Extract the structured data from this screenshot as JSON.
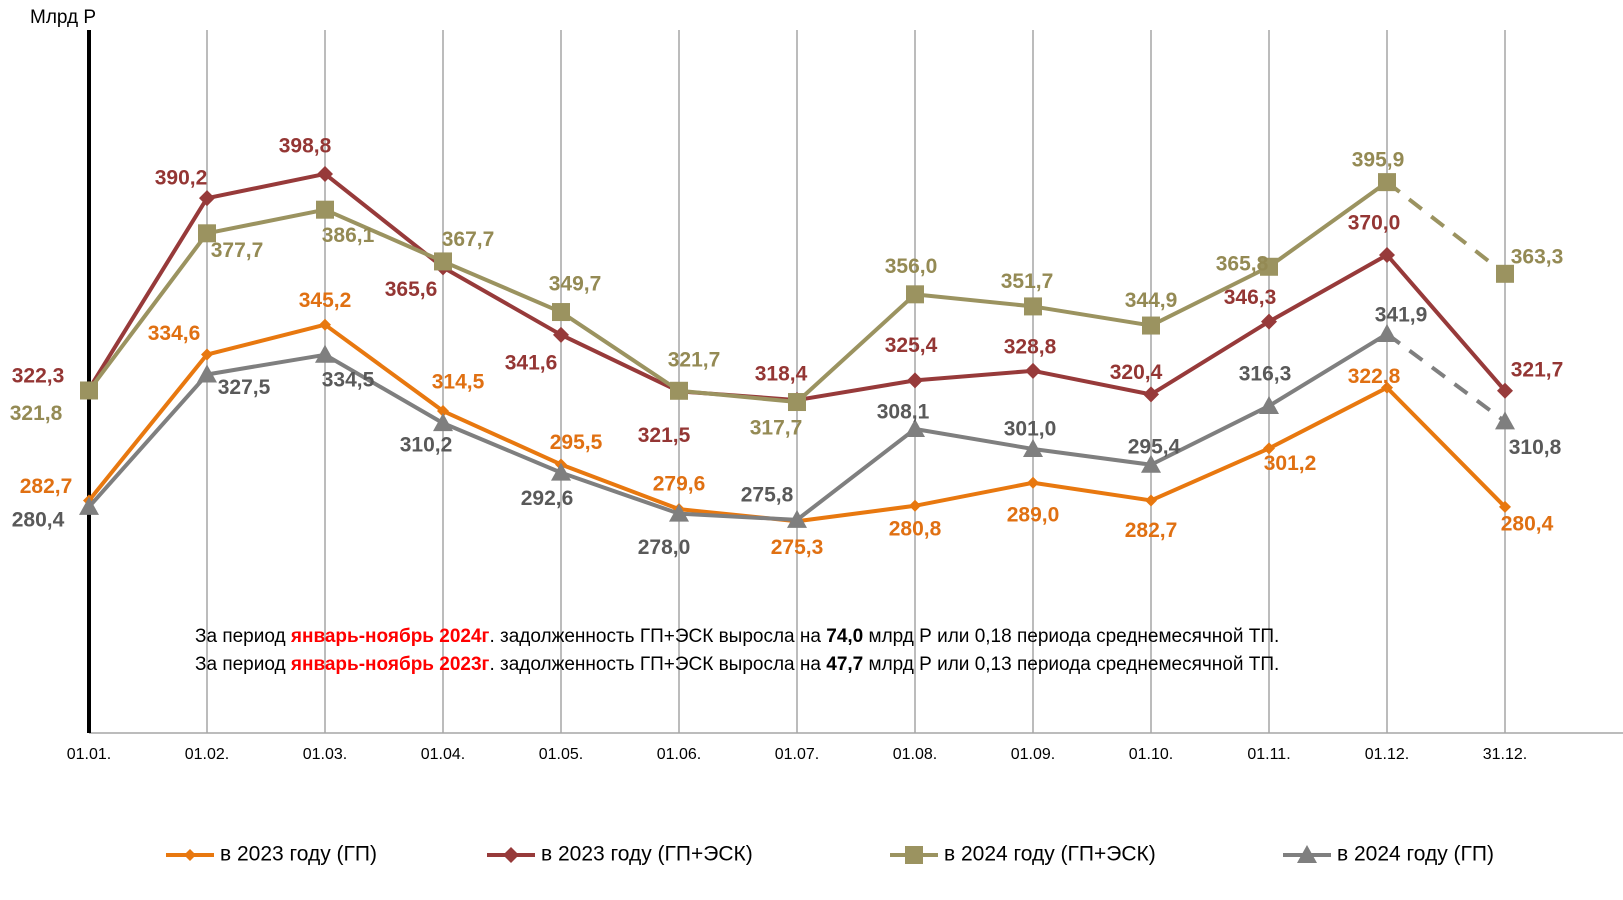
{
  "chart_data": {
    "type": "line",
    "y_label": "Млрд Р",
    "categories": [
      "01.01.",
      "01.02.",
      "01.03.",
      "01.04.",
      "01.05.",
      "01.06.",
      "01.07.",
      "01.08.",
      "01.09.",
      "01.10.",
      "01.11.",
      "01.12.",
      "31.12."
    ],
    "ylim": [
      200,
      450
    ],
    "grid": true,
    "legend": "bottom",
    "series": [
      {
        "name": "в 2023 году (ГП)",
        "color": "#e8780f",
        "label_color": "#e07012",
        "marker": "diamond-small",
        "dashed_last_segment": false,
        "values": [
          282.7,
          334.6,
          345.2,
          314.5,
          295.5,
          279.6,
          275.3,
          280.8,
          289.0,
          282.7,
          301.2,
          322.8,
          280.4
        ],
        "value_labels": [
          "282,7",
          "334,6",
          "345,2",
          "314,5",
          "295,5",
          "279,6",
          "275,3",
          "280,8",
          "289,0",
          "282,7",
          "301,2",
          "322,8",
          "280,4"
        ]
      },
      {
        "name": "в 2023 году (ГП+ЭСК)",
        "color": "#973a3a",
        "label_color": "#943634",
        "marker": "diamond",
        "dashed_last_segment": false,
        "values": [
          322.3,
          390.2,
          398.8,
          365.6,
          341.6,
          321.5,
          318.4,
          325.4,
          328.8,
          320.4,
          346.3,
          370.0,
          321.7
        ],
        "value_labels": [
          "322,3",
          "390,2",
          "398,8",
          "365,6",
          "341,6",
          "321,5",
          "318,4",
          "325,4",
          "328,8",
          "320,4",
          "346,3",
          "370,0",
          "321,7"
        ]
      },
      {
        "name": "в 2024 году (ГП+ЭСК)",
        "color": "#9b9360",
        "label_color": "#948a54",
        "marker": "square",
        "dashed_last_segment": true,
        "values": [
          321.8,
          377.7,
          386.1,
          367.7,
          349.7,
          321.7,
          317.7,
          356.0,
          351.7,
          344.9,
          365.8,
          395.9,
          363.3
        ],
        "value_labels": [
          "321,8",
          "377,7",
          "386,1",
          "367,7",
          "349,7",
          "321,7",
          "317,7",
          "356,0",
          "351,7",
          "344,9",
          "365,8",
          "395,9",
          "363,3"
        ]
      },
      {
        "name": "в 2024 году (ГП)",
        "color": "#7f7f7f",
        "label_color": "#595959",
        "marker": "triangle",
        "dashed_last_segment": true,
        "values": [
          280.4,
          327.5,
          334.5,
          310.2,
          292.6,
          278.0,
          275.8,
          308.1,
          301.0,
          295.4,
          316.3,
          341.9,
          310.8
        ],
        "value_labels": [
          "280,4",
          "327,5",
          "334,5",
          "310,2",
          "292,6",
          "278,0",
          "275,8",
          "308,1",
          "301,0",
          "295,4",
          "316,3",
          "341,9",
          "310,8"
        ]
      }
    ],
    "annotations": [
      [
        {
          "text": "За период ",
          "style": "normal"
        },
        {
          "text": "январь-ноябрь 2024г",
          "style": "red-bold"
        },
        {
          "text": ". задолженность ГП+ЭСК выросла на ",
          "style": "normal"
        },
        {
          "text": "74,0",
          "style": "bold"
        },
        {
          "text": " млрд Р или 0,18 периода среднемесячной ТП.",
          "style": "normal"
        }
      ],
      [
        {
          "text": "За период ",
          "style": "normal"
        },
        {
          "text": "январь-ноябрь 2023г",
          "style": "red-bold"
        },
        {
          "text": ". задолженность ГП+ЭСК выросла на ",
          "style": "normal"
        },
        {
          "text": "47,7",
          "style": "bold"
        },
        {
          "text": " млрд Р или 0,13 периода среднемесячной ТП.",
          "style": "normal"
        }
      ]
    ]
  }
}
